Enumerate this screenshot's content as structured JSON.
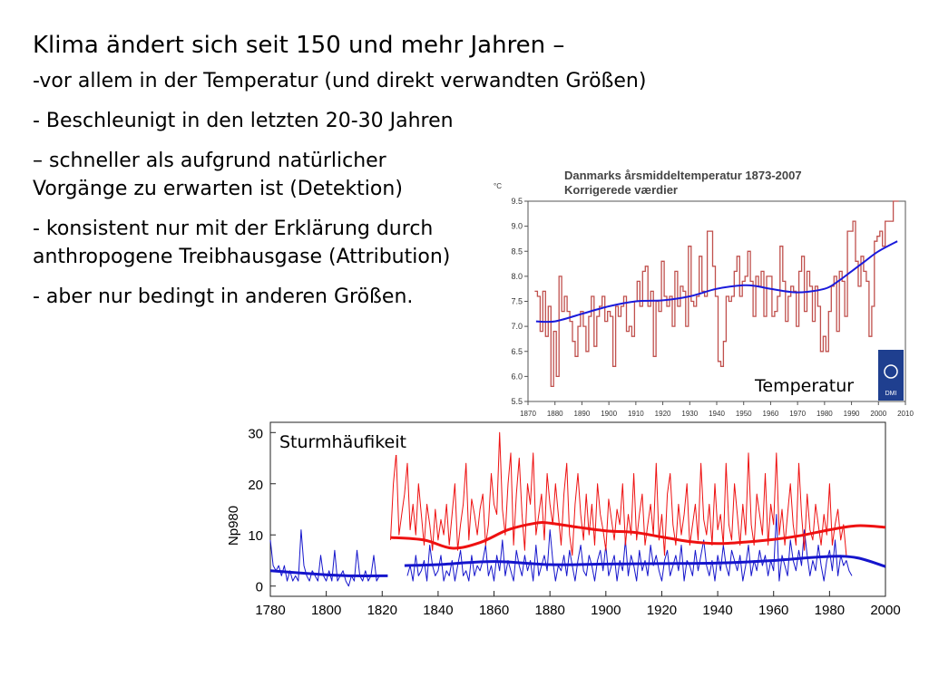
{
  "slide": {
    "title": "Klima ändert sich seit 150 und mehr Jahren –",
    "bullets": [
      "-vor allem in der Temperatur (und direkt verwandten Größen)",
      "- Beschleunigt in den letzten 20-30 Jahren",
      "– schneller als aufgrund  natürlicher Vorgänge zu erwarten ist (Detektion)",
      "- konsistent nur mit der Erklärung durch anthropogene Treibhausgase (Attribution)",
      "- aber nur bedingt in anderen Größen."
    ]
  },
  "colors": {
    "temp_raw": "#c0504d",
    "temp_smooth": "#1a1adb",
    "storm_red": "#ee1111",
    "storm_blue": "#1515cc",
    "dmi_blue": "#1f3f8f"
  },
  "chart_data": [
    {
      "type": "line",
      "title": "Danmarks årsmiddeltemperatur 1873-2007",
      "subtitle": "Korrigerede værdier",
      "ylabel": "°C",
      "label": "Temperatur",
      "logo_text": "DMI",
      "xlim": [
        1870,
        2010
      ],
      "ylim": [
        5.5,
        9.5
      ],
      "xticks": [
        1870,
        1880,
        1890,
        1900,
        1910,
        1920,
        1930,
        1940,
        1950,
        1960,
        1970,
        1980,
        1990,
        2000,
        2010
      ],
      "yticks": [
        5.5,
        6.0,
        6.5,
        7.0,
        7.5,
        8.0,
        8.5,
        9.0,
        9.5
      ],
      "yticklabels": [
        "5.5",
        "6.0",
        "6.5",
        "7.0",
        "7.5",
        "8.0",
        "8.5",
        "9.0",
        "9.5"
      ],
      "grid": false,
      "series": [
        {
          "style": "step",
          "color": "#c0504d",
          "x_start": 1873,
          "values": [
            7.7,
            7.6,
            6.9,
            7.7,
            6.8,
            7.4,
            5.8,
            6.9,
            6.0,
            8.0,
            7.3,
            7.6,
            7.3,
            7.1,
            6.7,
            6.4,
            7.0,
            7.3,
            7.0,
            6.5,
            7.2,
            7.6,
            6.6,
            7.2,
            7.4,
            7.6,
            7.1,
            7.3,
            7.2,
            6.2,
            7.4,
            7.2,
            7.4,
            7.6,
            6.9,
            7.0,
            6.8,
            7.5,
            7.9,
            7.4,
            8.1,
            8.2,
            7.4,
            7.7,
            6.4,
            7.5,
            7.3,
            8.3,
            7.6,
            7.4,
            7.6,
            7.0,
            8.1,
            7.4,
            7.8,
            7.7,
            7.0,
            8.6,
            7.5,
            7.4,
            7.6,
            8.4,
            7.7,
            7.6,
            8.9,
            8.9,
            8.2,
            7.6,
            6.3,
            6.2,
            6.7,
            7.6,
            7.5,
            7.6,
            8.1,
            8.4,
            7.6,
            7.9,
            8.0,
            8.5,
            7.9,
            7.2,
            8.0,
            7.8,
            8.1,
            7.2,
            8.0,
            8.0,
            7.2,
            7.3,
            7.6,
            8.6,
            7.9,
            7.1,
            7.6,
            7.8,
            7.7,
            7.0,
            8.1,
            8.4,
            7.3,
            8.1,
            7.8,
            7.1,
            7.8,
            7.4,
            6.5,
            6.8,
            6.5,
            7.3,
            7.8,
            8.0,
            6.9,
            8.1,
            7.9,
            7.2,
            8.9,
            8.9,
            9.1,
            8.3,
            7.8,
            8.4,
            8.1,
            7.9,
            6.8,
            7.4,
            8.7,
            8.8,
            8.9,
            8.6,
            9.1,
            9.1,
            9.1,
            9.5,
            9.5
          ]
        },
        {
          "style": "smooth",
          "color": "#1a1adb",
          "x": [
            1873,
            1880,
            1890,
            1900,
            1910,
            1920,
            1930,
            1940,
            1950,
            1955,
            1960,
            1970,
            1980,
            1985,
            1990,
            1995,
            2000,
            2007
          ],
          "values": [
            7.1,
            7.1,
            7.25,
            7.4,
            7.5,
            7.52,
            7.6,
            7.75,
            7.82,
            7.8,
            7.75,
            7.68,
            7.75,
            7.9,
            8.1,
            8.3,
            8.5,
            8.7
          ]
        }
      ]
    },
    {
      "type": "line",
      "label": "Sturmhäufikeit",
      "ylabel": "Np980",
      "xlim": [
        1780,
        2000
      ],
      "ylim": [
        -2,
        32
      ],
      "xticks": [
        1780,
        1800,
        1820,
        1840,
        1860,
        1880,
        1900,
        1920,
        1940,
        1960,
        1980,
        2000
      ],
      "yticks": [
        0,
        10,
        20,
        30
      ],
      "grid": false,
      "series": [
        {
          "style": "raw",
          "color": "#1515cc",
          "x_start": 1780,
          "values": [
            9,
            4,
            3,
            4,
            2,
            4,
            1,
            3,
            1,
            2,
            1,
            11,
            4,
            2,
            1,
            3,
            2,
            1,
            6,
            2,
            1,
            3,
            1,
            7,
            1,
            2,
            3,
            1,
            0,
            2,
            1,
            7,
            2,
            1,
            3,
            1,
            2,
            6,
            1,
            2
          ]
        },
        {
          "style": "raw",
          "color": "#1515cc",
          "x_start": 1829,
          "values": [
            2,
            4,
            1,
            6,
            2,
            3,
            5,
            1,
            8,
            4,
            2,
            3,
            6,
            1,
            3,
            2,
            5,
            1,
            4,
            7,
            2,
            3,
            1,
            6,
            2,
            4,
            3,
            5,
            8,
            2,
            4,
            1,
            6,
            3,
            9,
            2,
            5,
            3,
            1,
            7,
            4,
            2,
            6,
            3,
            5,
            1,
            8,
            2,
            4,
            6,
            3,
            11,
            5,
            1,
            4,
            3,
            6,
            2,
            7,
            4,
            1,
            5,
            8,
            3,
            2,
            6,
            4,
            1,
            5,
            7,
            3,
            8,
            2,
            4,
            6,
            1,
            5,
            3,
            9,
            2,
            6,
            4,
            1,
            7,
            3,
            5,
            2,
            8,
            4,
            6,
            3,
            1,
            5,
            7,
            2,
            4,
            6,
            3,
            8,
            1,
            5,
            4,
            2,
            7,
            3,
            6,
            9,
            4,
            2,
            5,
            1,
            6,
            3,
            8,
            4,
            2,
            7,
            5,
            3,
            6,
            1,
            4,
            8,
            2,
            5,
            3,
            7,
            4,
            6,
            2,
            5,
            3,
            14,
            1,
            6,
            4,
            2,
            9,
            5,
            3,
            7,
            4,
            11,
            6,
            2,
            5,
            3,
            8,
            4,
            1,
            5,
            7,
            3,
            9,
            2,
            6,
            4,
            5,
            3,
            2
          ]
        },
        {
          "style": "raw",
          "color": "#ee1111",
          "x_start": 1823,
          "values": [
            9,
            20,
            26,
            10,
            14,
            18,
            24,
            11,
            16,
            10,
            20,
            14,
            8,
            16,
            12,
            7,
            15,
            9,
            13,
            10,
            16,
            8,
            14,
            20,
            7,
            12,
            16,
            24,
            9,
            17,
            14,
            10,
            15,
            18,
            8,
            12,
            22,
            16,
            14,
            30,
            15,
            10,
            20,
            26,
            8,
            18,
            25,
            14,
            7,
            20,
            16,
            26,
            10,
            14,
            18,
            9,
            22,
            16,
            12,
            20,
            14,
            8,
            18,
            24,
            10,
            6,
            16,
            22,
            14,
            9,
            18,
            10,
            16,
            8,
            20,
            14,
            11,
            7,
            17,
            13,
            9,
            15,
            12,
            20,
            8,
            14,
            10,
            22,
            9,
            14,
            18,
            8,
            12,
            16,
            10,
            24,
            9,
            14,
            6,
            18,
            22,
            12,
            8,
            16,
            10,
            14,
            20,
            8,
            12,
            16,
            9,
            24,
            13,
            10,
            16,
            8,
            20,
            11,
            14,
            8,
            24,
            12,
            9,
            20,
            14,
            8,
            16,
            10,
            26,
            12,
            8,
            18,
            14,
            10,
            22,
            8,
            16,
            12,
            26,
            10,
            15,
            8,
            14,
            20,
            12,
            8,
            24,
            14,
            7,
            18,
            11,
            9,
            16,
            12,
            8,
            14,
            10,
            20,
            8,
            12,
            15,
            9,
            12,
            6
          ]
        },
        {
          "style": "smooth",
          "color": "#1515cc",
          "x": [
            1780,
            1800,
            1810,
            1822
          ],
          "values": [
            3.0,
            2.2,
            2.0,
            2.0
          ]
        },
        {
          "style": "smooth",
          "color": "#1515cc",
          "x": [
            1828,
            1840,
            1860,
            1880,
            1900,
            1920,
            1940,
            1960,
            1980,
            1990,
            2000
          ],
          "values": [
            4.0,
            4.2,
            4.8,
            4.2,
            4.3,
            4.4,
            4.5,
            5.0,
            5.8,
            5.5,
            3.8
          ]
        },
        {
          "style": "smooth",
          "color": "#ee1111",
          "x": [
            1823,
            1835,
            1845,
            1855,
            1865,
            1875,
            1880,
            1890,
            1900,
            1910,
            1920,
            1930,
            1940,
            1950,
            1960,
            1970,
            1980,
            1990,
            2000
          ],
          "values": [
            9.5,
            9.0,
            7.4,
            8.5,
            11.0,
            12.3,
            12.3,
            11.5,
            10.8,
            10.5,
            9.6,
            8.7,
            8.3,
            8.6,
            9.1,
            9.9,
            11.0,
            11.8,
            11.5
          ]
        }
      ]
    }
  ]
}
